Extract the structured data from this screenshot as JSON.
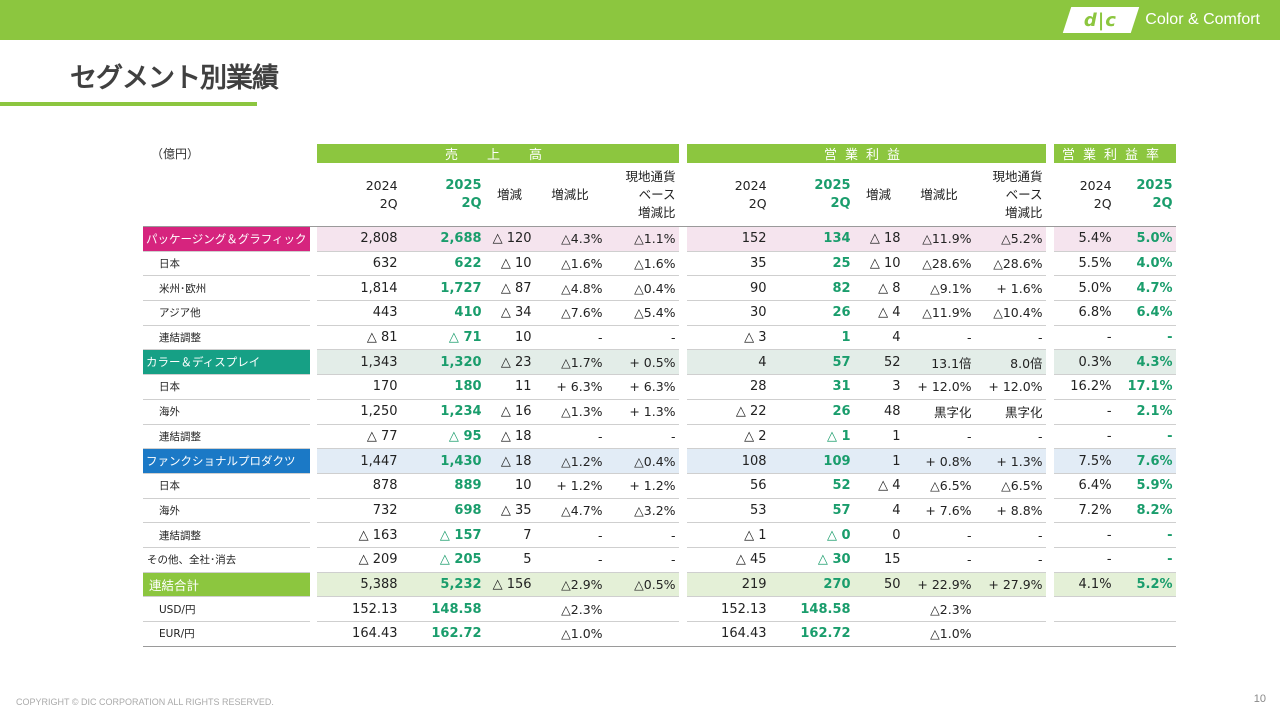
{
  "header": {
    "logo_mark": "d|c",
    "logo_text": "Color & Comfort"
  },
  "page": {
    "title": "セグメント別業績",
    "unit": "（億円）",
    "footer": "COPYRIGHT © DIC CORPORATION ALL RIGHTS RESERVED.",
    "page_number": "10"
  },
  "table": {
    "groups": {
      "sales": "売　上　高",
      "op": "営業利益",
      "opm": "営業利益率"
    },
    "columns": [
      "2024\n2Q",
      "2025\n2Q",
      "増減",
      "増減比",
      "現地通貨\nベース\n増減比",
      "2024\n2Q",
      "2025\n2Q",
      "増減",
      "増減比",
      "現地通貨\nベース\n増減比",
      "2024\n2Q",
      "2025\n2Q"
    ],
    "rows": [
      {
        "label": "パッケージング＆グラフィック",
        "kind": "pg",
        "cells": [
          "2,808",
          "2,688",
          "△ 120",
          "△4.3%",
          "△1.1%",
          "152",
          "134",
          "△ 18",
          "△11.9%",
          "△5.2%",
          "5.4%",
          "5.0%"
        ]
      },
      {
        "label": "日本",
        "kind": "sub",
        "cells": [
          "632",
          "622",
          "△ 10",
          "△1.6%",
          "△1.6%",
          "35",
          "25",
          "△ 10",
          "△28.6%",
          "△28.6%",
          "5.5%",
          "4.0%"
        ]
      },
      {
        "label": "米州･欧州",
        "kind": "sub",
        "cells": [
          "1,814",
          "1,727",
          "△ 87",
          "△4.8%",
          "△0.4%",
          "90",
          "82",
          "△ 8",
          "△9.1%",
          "+ 1.6%",
          "5.0%",
          "4.7%"
        ]
      },
      {
        "label": "アジア他",
        "kind": "sub",
        "cells": [
          "443",
          "410",
          "△ 34",
          "△7.6%",
          "△5.4%",
          "30",
          "26",
          "△ 4",
          "△11.9%",
          "△10.4%",
          "6.8%",
          "6.4%"
        ]
      },
      {
        "label": "連結調整",
        "kind": "sub",
        "cells": [
          "△ 81",
          "△ 71",
          "10",
          "-",
          "-",
          "△ 3",
          "1",
          "4",
          "-",
          "-",
          "-",
          "-"
        ]
      },
      {
        "label": "カラー＆ディスプレイ",
        "kind": "cd",
        "cells": [
          "1,343",
          "1,320",
          "△ 23",
          "△1.7%",
          "+ 0.5%",
          "4",
          "57",
          "52",
          "13.1倍",
          "8.0倍",
          "0.3%",
          "4.3%"
        ]
      },
      {
        "label": "日本",
        "kind": "sub",
        "cells": [
          "170",
          "180",
          "11",
          "+ 6.3%",
          "+ 6.3%",
          "28",
          "31",
          "3",
          "+ 12.0%",
          "+ 12.0%",
          "16.2%",
          "17.1%"
        ]
      },
      {
        "label": "海外",
        "kind": "sub",
        "cells": [
          "1,250",
          "1,234",
          "△ 16",
          "△1.3%",
          "+ 1.3%",
          "△ 22",
          "26",
          "48",
          "黒字化",
          "黒字化",
          "-",
          "2.1%"
        ]
      },
      {
        "label": "連結調整",
        "kind": "sub",
        "cells": [
          "△ 77",
          "△ 95",
          "△ 18",
          "-",
          "-",
          "△ 2",
          "△ 1",
          "1",
          "-",
          "-",
          "-",
          "-"
        ]
      },
      {
        "label": "ファンクショナルプロダクツ",
        "kind": "fp",
        "cells": [
          "1,447",
          "1,430",
          "△ 18",
          "△1.2%",
          "△0.4%",
          "108",
          "109",
          "1",
          "+ 0.8%",
          "+ 1.3%",
          "7.5%",
          "7.6%"
        ]
      },
      {
        "label": "日本",
        "kind": "sub",
        "cells": [
          "878",
          "889",
          "10",
          "+ 1.2%",
          "+ 1.2%",
          "56",
          "52",
          "△ 4",
          "△6.5%",
          "△6.5%",
          "6.4%",
          "5.9%"
        ]
      },
      {
        "label": "海外",
        "kind": "sub",
        "cells": [
          "732",
          "698",
          "△ 35",
          "△4.7%",
          "△3.2%",
          "53",
          "57",
          "4",
          "+ 7.6%",
          "+ 8.8%",
          "7.2%",
          "8.2%"
        ]
      },
      {
        "label": "連結調整",
        "kind": "sub",
        "cells": [
          "△ 163",
          "△ 157",
          "7",
          "-",
          "-",
          "△ 1",
          "△ 0",
          "0",
          "-",
          "-",
          "-",
          "-"
        ]
      },
      {
        "label": "その他、全社･消去",
        "kind": "other",
        "cells": [
          "△ 209",
          "△ 205",
          "5",
          "-",
          "-",
          "△ 45",
          "△ 30",
          "15",
          "-",
          "-",
          "-",
          "-"
        ]
      },
      {
        "label": "連結合計",
        "kind": "tot",
        "cells": [
          "5,388",
          "5,232",
          "△ 156",
          "△2.9%",
          "△0.5%",
          "219",
          "270",
          "50",
          "+ 22.9%",
          "+ 27.9%",
          "4.1%",
          "5.2%"
        ]
      },
      {
        "label": "USD/円",
        "kind": "sub",
        "cells": [
          "152.13",
          "148.58",
          "",
          "△2.3%",
          "",
          "152.13",
          "148.58",
          "",
          "△2.3%",
          "",
          "",
          ""
        ]
      },
      {
        "label": "EUR/円",
        "kind": "sub",
        "cells": [
          "164.43",
          "162.72",
          "",
          "△1.0%",
          "",
          "164.43",
          "162.72",
          "",
          "△1.0%",
          "",
          "",
          ""
        ]
      }
    ]
  }
}
